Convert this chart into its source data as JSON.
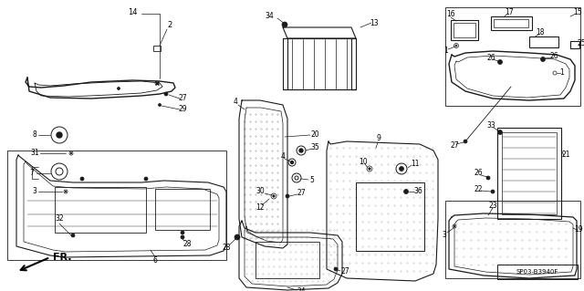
{
  "bg_color": "#ffffff",
  "diagram_code": "SP03-B3940F",
  "fr_label": "FR.",
  "lc": "#1a1a1a",
  "figsize": [
    6.4,
    3.19
  ],
  "dpi": 100
}
